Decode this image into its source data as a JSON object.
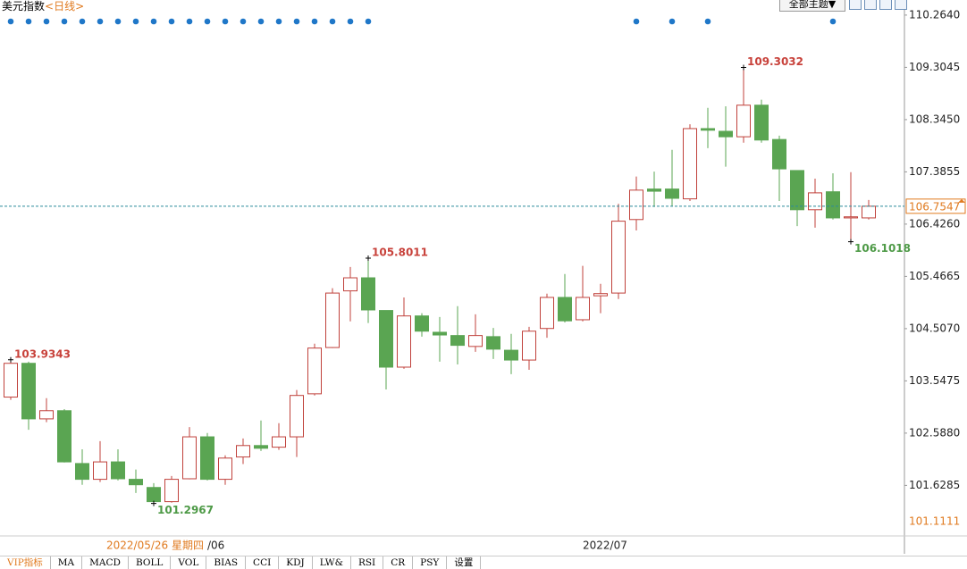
{
  "header": {
    "title": "美元指数",
    "subtitle": "<日线>",
    "theme_menu": "全部主题▼"
  },
  "tabs": [
    "VIP指标",
    "MA",
    "MACD",
    "BOLL",
    "VOL",
    "BIAS",
    "CCI",
    "KDJ",
    "LW&",
    "RSI",
    "CR",
    "PSY",
    "设置"
  ],
  "chart_data": {
    "type": "candlestick",
    "cursor_date": "2022/05/26 星期四",
    "categories": [
      null,
      null,
      null,
      null,
      null,
      null,
      null,
      null,
      null,
      null,
      null,
      null,
      "/06",
      null,
      null,
      null,
      null,
      null,
      null,
      null,
      null,
      null,
      null,
      null,
      null,
      null,
      null,
      null,
      null,
      null,
      null,
      null,
      null,
      "2022/07",
      null,
      null,
      null,
      null,
      null,
      null,
      null,
      null,
      null,
      null,
      null,
      null,
      null,
      null,
      null
    ],
    "open": [
      103.25,
      103.87,
      102.85,
      103.0,
      102.03,
      101.74,
      102.06,
      101.74,
      101.59,
      101.33,
      101.75,
      102.52,
      101.74,
      102.15,
      102.36,
      102.33,
      102.52,
      103.31,
      104.16,
      105.2,
      105.44,
      104.84,
      103.8,
      104.74,
      104.44,
      104.38,
      104.18,
      104.36,
      104.11,
      103.93,
      104.51,
      105.08,
      104.67,
      105.11,
      105.16,
      106.51,
      107.07,
      107.07,
      106.89,
      108.18,
      108.13,
      108.03,
      108.61,
      107.98,
      107.41,
      106.69,
      107.02,
      106.54,
      106.54
    ],
    "high": [
      103.9343,
      103.9,
      103.23,
      103.03,
      102.29,
      102.44,
      102.29,
      101.92,
      101.67,
      101.8,
      102.7,
      102.59,
      102.18,
      102.49,
      102.82,
      102.77,
      103.38,
      104.23,
      105.25,
      105.64,
      105.8011,
      104.84,
      105.08,
      104.79,
      104.72,
      104.92,
      104.77,
      104.52,
      104.41,
      104.54,
      105.15,
      105.51,
      105.66,
      105.33,
      106.8,
      107.3,
      107.39,
      107.79,
      108.26,
      108.56,
      108.59,
      109.3032,
      108.71,
      108.05,
      107.41,
      107.26,
      107.36,
      107.38,
      106.87
    ],
    "low": [
      103.2,
      102.65,
      102.79,
      102.05,
      101.64,
      101.69,
      101.72,
      101.49,
      101.2967,
      101.31,
      101.74,
      101.72,
      101.64,
      102.02,
      102.26,
      102.28,
      102.15,
      103.28,
      104.15,
      104.64,
      104.61,
      103.39,
      103.77,
      104.36,
      103.9,
      103.85,
      104.08,
      103.95,
      103.67,
      103.75,
      104.34,
      104.62,
      104.64,
      104.79,
      105.05,
      106.31,
      106.74,
      106.75,
      106.85,
      107.82,
      107.48,
      107.92,
      107.92,
      106.85,
      106.39,
      106.36,
      106.51,
      106.1018,
      106.51
    ],
    "close": [
      103.87,
      102.85,
      103.0,
      102.06,
      101.74,
      102.06,
      101.75,
      101.64,
      101.33,
      101.74,
      102.52,
      101.74,
      102.13,
      102.36,
      102.31,
      102.52,
      103.28,
      104.15,
      105.16,
      105.44,
      104.85,
      103.8,
      104.74,
      104.46,
      104.39,
      104.2,
      104.38,
      104.13,
      103.93,
      104.46,
      105.08,
      104.65,
      105.08,
      105.15,
      106.48,
      107.05,
      107.03,
      106.9,
      108.18,
      108.15,
      108.03,
      108.61,
      107.97,
      107.44,
      106.69,
      107.0,
      106.54,
      106.56,
      106.7547
    ],
    "up_color": "#c0413b",
    "down_color": "#5aa552",
    "marker_color": "#1f77c8",
    "labeled_highs": [
      0,
      20,
      41
    ],
    "labeled_lows": [
      8,
      47
    ],
    "event_markers": [
      0,
      1,
      2,
      3,
      4,
      5,
      6,
      7,
      8,
      9,
      10,
      11,
      12,
      13,
      14,
      15,
      16,
      17,
      18,
      19,
      20,
      35,
      37,
      39,
      46
    ],
    "range_low_label": 101.1111,
    "ylim": [
      100.7,
      110.41
    ],
    "yticks": [
      {
        "value": 110.264,
        "label": "110.2640"
      },
      109.3045,
      {
        "value": 108.345,
        "label": "108.3450"
      },
      107.3855,
      {
        "value": 106.426,
        "label": "106.4260"
      },
      105.4665,
      {
        "value": 104.507,
        "label": "104.5070"
      },
      103.5475,
      {
        "value": 102.588,
        "label": "102.5880"
      },
      101.6285
    ]
  }
}
